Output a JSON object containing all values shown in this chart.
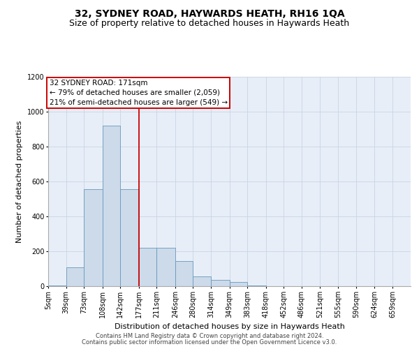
{
  "title": "32, SYDNEY ROAD, HAYWARDS HEATH, RH16 1QA",
  "subtitle": "Size of property relative to detached houses in Haywards Heath",
  "xlabel": "Distribution of detached houses by size in Haywards Heath",
  "ylabel": "Number of detached properties",
  "footer_line1": "Contains HM Land Registry data © Crown copyright and database right 2024.",
  "footer_line2": "Contains public sector information licensed under the Open Government Licence v3.0.",
  "annotation_line1": "32 SYDNEY ROAD: 171sqm",
  "annotation_line2": "← 79% of detached houses are smaller (2,059)",
  "annotation_line3": "21% of semi-detached houses are larger (549) →",
  "property_size": 171,
  "vline_x": 177,
  "bin_edges": [
    5,
    39,
    73,
    108,
    142,
    177,
    211,
    246,
    280,
    314,
    349,
    383,
    418,
    452,
    486,
    521,
    555,
    590,
    624,
    659,
    693
  ],
  "bar_heights": [
    5,
    110,
    555,
    920,
    555,
    220,
    220,
    145,
    55,
    35,
    25,
    5,
    0,
    0,
    0,
    0,
    0,
    0,
    0,
    0
  ],
  "bar_color": "#ccdaea",
  "bar_edgecolor": "#6699bb",
  "vline_color": "#cc0000",
  "annotation_box_edgecolor": "#cc0000",
  "annotation_box_facecolor": "#ffffff",
  "grid_color": "#c8d4e4",
  "background_color": "#e8eef8",
  "ylim": [
    0,
    1200
  ],
  "yticks": [
    0,
    200,
    400,
    600,
    800,
    1000,
    1200
  ],
  "title_fontsize": 10,
  "subtitle_fontsize": 9,
  "axis_label_fontsize": 8,
  "tick_fontsize": 7,
  "annotation_fontsize": 7.5,
  "footer_fontsize": 6
}
